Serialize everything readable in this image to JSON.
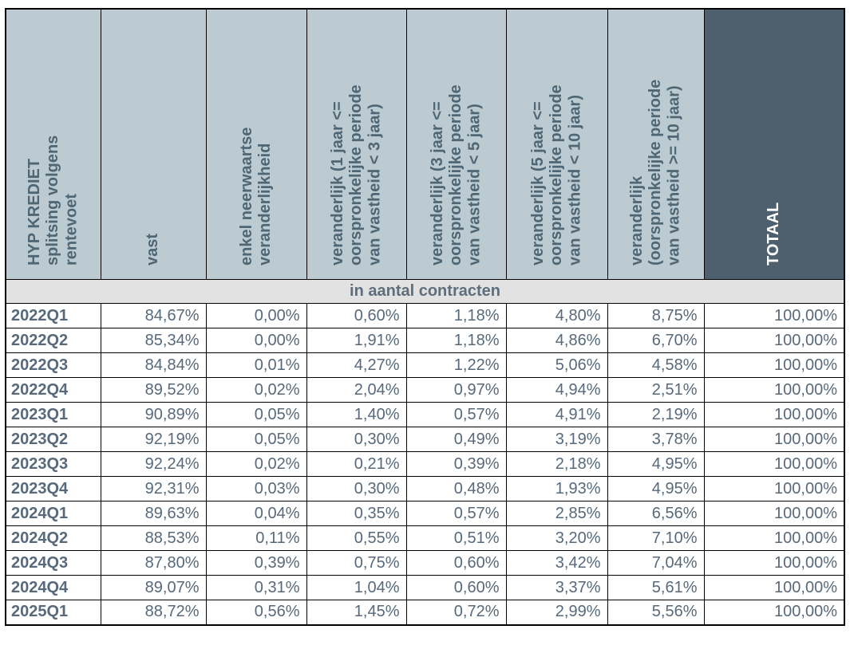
{
  "colors": {
    "header_bg": "#bccbd2",
    "header_text": "#4f6674",
    "totaal_bg": "#4e606e",
    "totaal_text": "#ffffff",
    "subtitle_bg": "#e2e2e2",
    "data_text": "#57697b",
    "border": "#000000"
  },
  "chart_data": {
    "type": "table",
    "title": "HYP KREDIET splitsing volgens rentevoet",
    "subtitle": "in aantal contracten",
    "columns": [
      "HYP KREDIET\nsplitsing volgens\nrentevoet",
      "vast",
      "enkel neerwaartse\nveranderlijkheid",
      "veranderlijk (1 jaar <=\noorspronkelijke periode\nvan vastheid < 3 jaar)",
      "veranderlijk (3 jaar <=\noorspronkelijke periode\nvan vastheid < 5 jaar)",
      "veranderlijk (5 jaar <=\noorspronkelijke periode\nvan vastheid < 10 jaar)",
      "veranderlijk\n(oorspronkelijke periode\nvan vastheid >= 10 jaar)",
      "TOTAAL"
    ],
    "rows": [
      {
        "quarter": "2022Q1",
        "cells": [
          "84,67%",
          "0,00%",
          "0,60%",
          "1,18%",
          "4,80%",
          "8,75%",
          "100,00%"
        ]
      },
      {
        "quarter": "2022Q2",
        "cells": [
          "85,34%",
          "0,00%",
          "1,91%",
          "1,18%",
          "4,86%",
          "6,70%",
          "100,00%"
        ]
      },
      {
        "quarter": "2022Q3",
        "cells": [
          "84,84%",
          "0,01%",
          "4,27%",
          "1,22%",
          "5,06%",
          "4,58%",
          "100,00%"
        ]
      },
      {
        "quarter": "2022Q4",
        "cells": [
          "89,52%",
          "0,02%",
          "2,04%",
          "0,97%",
          "4,94%",
          "2,51%",
          "100,00%"
        ]
      },
      {
        "quarter": "2023Q1",
        "cells": [
          "90,89%",
          "0,05%",
          "1,40%",
          "0,57%",
          "4,91%",
          "2,19%",
          "100,00%"
        ]
      },
      {
        "quarter": "2023Q2",
        "cells": [
          "92,19%",
          "0,05%",
          "0,30%",
          "0,49%",
          "3,19%",
          "3,78%",
          "100,00%"
        ]
      },
      {
        "quarter": "2023Q3",
        "cells": [
          "92,24%",
          "0,02%",
          "0,21%",
          "0,39%",
          "2,18%",
          "4,95%",
          "100,00%"
        ]
      },
      {
        "quarter": "2023Q4",
        "cells": [
          "92,31%",
          "0,03%",
          "0,30%",
          "0,48%",
          "1,93%",
          "4,95%",
          "100,00%"
        ]
      },
      {
        "quarter": "2024Q1",
        "cells": [
          "89,63%",
          "0,04%",
          "0,35%",
          "0,57%",
          "2,85%",
          "6,56%",
          "100,00%"
        ]
      },
      {
        "quarter": "2024Q2",
        "cells": [
          "88,53%",
          "0,11%",
          "0,55%",
          "0,51%",
          "3,20%",
          "7,10%",
          "100,00%"
        ]
      },
      {
        "quarter": "2024Q3",
        "cells": [
          "87,80%",
          "0,39%",
          "0,75%",
          "0,60%",
          "3,42%",
          "7,04%",
          "100,00%"
        ]
      },
      {
        "quarter": "2024Q4",
        "cells": [
          "89,07%",
          "0,31%",
          "1,04%",
          "0,60%",
          "3,37%",
          "5,61%",
          "100,00%"
        ]
      },
      {
        "quarter": "2025Q1",
        "cells": [
          "88,72%",
          "0,56%",
          "1,45%",
          "0,72%",
          "2,99%",
          "5,56%",
          "100,00%"
        ]
      }
    ]
  }
}
